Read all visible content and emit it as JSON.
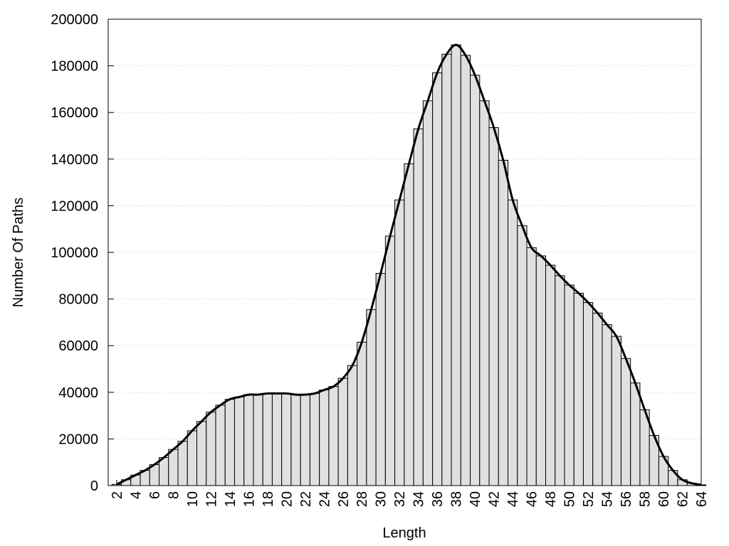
{
  "chart_data": {
    "type": "bar",
    "xlabel": "Length",
    "ylabel": "Number Of Paths",
    "x": [
      2,
      3,
      4,
      5,
      6,
      7,
      8,
      9,
      10,
      11,
      12,
      13,
      14,
      15,
      16,
      17,
      18,
      19,
      20,
      21,
      22,
      23,
      24,
      25,
      26,
      27,
      28,
      29,
      30,
      31,
      32,
      33,
      34,
      35,
      36,
      37,
      38,
      39,
      40,
      41,
      42,
      43,
      44,
      45,
      46,
      47,
      48,
      49,
      50,
      51,
      52,
      53,
      54,
      55,
      56,
      57,
      58,
      59,
      60,
      61,
      62,
      63,
      64
    ],
    "values": [
      500,
      2500,
      4500,
      6500,
      9000,
      12000,
      15500,
      19000,
      23500,
      27500,
      31500,
      34500,
      37000,
      38000,
      39000,
      39000,
      39500,
      39500,
      39500,
      39000,
      39000,
      39500,
      41000,
      42500,
      46000,
      51500,
      61500,
      75500,
      91000,
      107000,
      122500,
      138000,
      153000,
      165000,
      177000,
      185000,
      189000,
      184500,
      176000,
      165000,
      153500,
      139500,
      122500,
      111500,
      102000,
      98500,
      94500,
      90000,
      86000,
      82500,
      78500,
      74000,
      69000,
      64000,
      54500,
      44000,
      32500,
      21500,
      12500,
      6500,
      2500,
      1000,
      300
    ],
    "color": "#e0e0e0",
    "line_color": "#000000",
    "xlim": [
      1.1,
      64
    ],
    "xticks": [
      2,
      4,
      6,
      8,
      10,
      12,
      14,
      16,
      18,
      20,
      22,
      24,
      26,
      28,
      30,
      32,
      34,
      36,
      38,
      40,
      42,
      44,
      46,
      48,
      50,
      52,
      54,
      56,
      58,
      60,
      62,
      64
    ],
    "ylim": [
      0,
      200000
    ],
    "yticks": [
      0,
      20000,
      40000,
      60000,
      80000,
      100000,
      120000,
      140000,
      160000,
      180000,
      200000
    ],
    "grid": true
  }
}
